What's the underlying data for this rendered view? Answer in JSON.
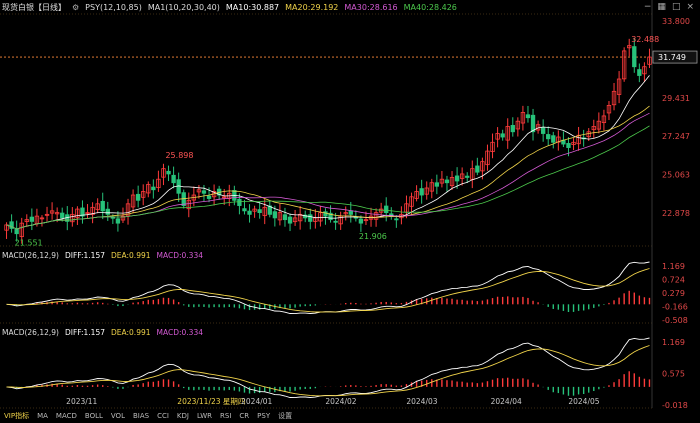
{
  "header": {
    "symbol": "现货白银",
    "period": "【日线】",
    "psy_label": "PSY(12,10,85)",
    "ma1": "MA1(10,20,30,40)",
    "ma10": "MA10:30.887",
    "ma20": "MA20:29.192",
    "ma30": "MA30:28.616",
    "ma40": "MA40:28.426"
  },
  "toolbar_icons": [
    "minus-icon",
    "grid-icon",
    "square-icon",
    "close-icon"
  ],
  "macd_panels": [
    {
      "label": "MACD(26,12,9)",
      "diff": "DIFF:1.157",
      "dea": "DEA:0.991",
      "macd": "MACD:0.334",
      "ticks": [
        "1.169",
        "0.724",
        "0.279",
        "-0.166",
        "-0.508"
      ]
    },
    {
      "label": "MACD(26,12,9)",
      "diff": "DIFF:1.157",
      "dea": "DEA:0.991",
      "macd": "MACD:0.334",
      "ticks": [
        "1.169",
        "0.575",
        "-0.018"
      ]
    }
  ],
  "price_axis": [
    "33.800",
    "31.749",
    "29.431",
    "27.247",
    "25.063",
    "22.878"
  ],
  "last_price": "31.749",
  "annotations": [
    "32.488",
    "25.898",
    "21.551",
    "21.906"
  ],
  "x_labels": [
    "2023/11",
    "2023/11/23 星期四",
    "2024/01",
    "2024/02",
    "2024/03",
    "2024/04",
    "2024/05"
  ],
  "bottom_tabs": [
    "VIP指标",
    "MA",
    "MACD",
    "BOLL",
    "VOL",
    "BIAS",
    "CCI",
    "KDJ",
    "LWR",
    "RSI",
    "CR",
    "PSY",
    "设置"
  ],
  "colors": {
    "up": "#ff3b3b",
    "down": "#27c27a",
    "ma10": "#ffffff",
    "ma20": "#f0d34a",
    "ma30": "#d35ad3",
    "ma40": "#4cc84c",
    "diff": "#ffffff",
    "dea": "#f0d34a",
    "last_price_line": "#ff8c3a"
  },
  "chart_data": {
    "type": "candlestick",
    "y_range": [
      21.0,
      34.2
    ],
    "closes": [
      22.2,
      22.0,
      21.7,
      22.3,
      22.5,
      22.4,
      22.7,
      22.6,
      22.8,
      23.0,
      22.9,
      22.6,
      22.4,
      22.8,
      23.1,
      22.7,
      22.9,
      23.2,
      23.4,
      23.0,
      22.8,
      22.6,
      22.3,
      22.7,
      23.4,
      23.9,
      23.6,
      24.1,
      24.5,
      24.2,
      24.8,
      25.4,
      25.1,
      24.6,
      24.0,
      23.3,
      23.6,
      23.9,
      24.2,
      24.0,
      23.7,
      24.1,
      23.9,
      23.8,
      24.0,
      23.6,
      23.3,
      23.0,
      22.8,
      23.1,
      22.9,
      23.2,
      22.8,
      22.6,
      22.9,
      22.5,
      22.3,
      22.6,
      22.8,
      22.6,
      22.4,
      22.6,
      22.9,
      22.7,
      22.5,
      22.4,
      22.7,
      22.9,
      22.8,
      22.6,
      22.3,
      22.5,
      22.7,
      22.9,
      23.1,
      22.9,
      22.7,
      22.5,
      22.8,
      23.4,
      23.8,
      24.1,
      23.9,
      24.3,
      24.6,
      24.4,
      24.8,
      24.6,
      24.9,
      24.7,
      25.1,
      24.9,
      25.4,
      25.2,
      25.8,
      26.4,
      26.9,
      27.4,
      27.2,
      27.8,
      27.5,
      28.1,
      28.6,
      28.3,
      27.5,
      27.9,
      27.4,
      27.1,
      26.9,
      27.2,
      26.8,
      26.6,
      26.9,
      27.3,
      27.1,
      27.5,
      27.8,
      28.1,
      28.4,
      29.0,
      29.8,
      30.5,
      32.1,
      32.4,
      31.2,
      30.7,
      31.2,
      31.749
    ],
    "ma10": 30.887,
    "ma20": 29.192,
    "ma30": 28.616,
    "ma40": 28.426,
    "macd": {
      "diff": 1.157,
      "dea": 0.991,
      "macd": 0.334
    }
  }
}
